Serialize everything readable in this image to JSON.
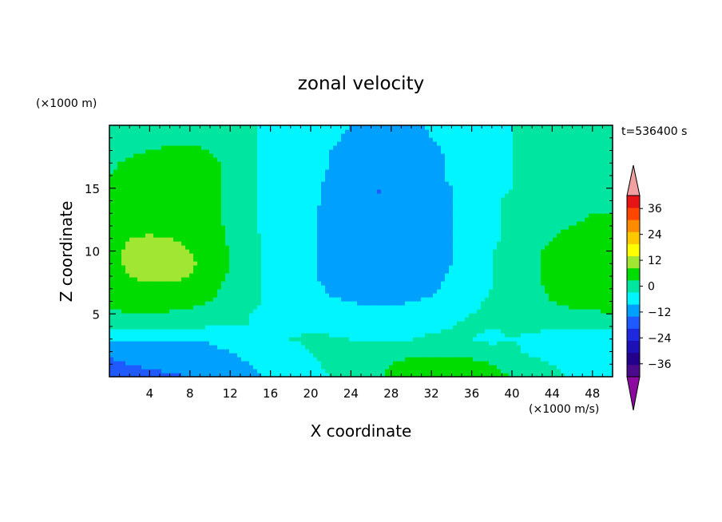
{
  "chart_data": {
    "type": "heatmap",
    "title": "zonal velocity",
    "xlabel": "X coordinate",
    "ylabel": "Z coordinate",
    "x_units": "(×1000 m/s)",
    "y_units": "(×1000 m)",
    "time_label": "t=536400 s",
    "xlim": [
      0,
      50
    ],
    "ylim": [
      0,
      20
    ],
    "xticks": [
      4,
      8,
      12,
      16,
      20,
      24,
      28,
      32,
      36,
      40,
      44,
      48
    ],
    "yticks": [
      5,
      10,
      15
    ],
    "colorbar": {
      "levels": [
        -42,
        -36,
        -30,
        -24,
        -18,
        -12,
        -6,
        0,
        6,
        12,
        18,
        24,
        30,
        36,
        42
      ],
      "colors": [
        "#4b0a8c",
        "#23008c",
        "#1d10b4",
        "#1e28dc",
        "#1e5aff",
        "#00a0ff",
        "#00f5ff",
        "#00e6a0",
        "#00dc00",
        "#a0e632",
        "#ffff00",
        "#ffc800",
        "#ff8c00",
        "#ff4600",
        "#e61414"
      ],
      "under_color": "#8c0aa0",
      "over_color": "#f0a0a0",
      "tick_labels": [
        "36",
        "24",
        "12",
        "0",
        "−12",
        "−24",
        "−36"
      ],
      "tick_values": [
        36,
        24,
        12,
        0,
        -12,
        -24,
        -36
      ]
    },
    "field": {
      "nx": 26,
      "nz": 21,
      "x_start": 0,
      "x_step": 2,
      "z_start": 0,
      "z_step": 1,
      "values": [
        [
          -17,
          -16,
          -14,
          -13,
          -12,
          -10,
          -8,
          -7,
          -5,
          -4,
          -2,
          0,
          2,
          4,
          7,
          8,
          10,
          10,
          10,
          8,
          6,
          4,
          2,
          -1,
          -2,
          -5
        ],
        [
          -13,
          -12,
          -11,
          -10,
          -10,
          -9,
          -7,
          -6,
          -5,
          -3,
          -1,
          1,
          3,
          5,
          6,
          7,
          8,
          8,
          8,
          6,
          4,
          2,
          0,
          -3,
          -4,
          -6
        ],
        [
          -11,
          -10,
          -9,
          -9,
          -9,
          -8,
          -6,
          -5,
          -4,
          -2,
          0,
          2,
          3,
          4,
          5,
          5,
          5,
          4,
          4,
          2,
          1,
          -1,
          -2,
          -4,
          -5,
          -6
        ],
        [
          -6,
          -6,
          -5,
          -5,
          -6,
          -5,
          -3,
          -2,
          -2,
          0,
          1,
          1,
          0,
          0,
          0,
          0,
          1,
          1,
          0,
          -1,
          0,
          -1,
          -3,
          -4,
          -4,
          -5
        ],
        [
          3,
          2,
          2,
          2,
          1,
          0,
          0,
          0,
          -1,
          -1,
          -1,
          -2,
          -3,
          -3,
          -3,
          -2,
          -1,
          0,
          1,
          0,
          1,
          1,
          1,
          1,
          2,
          2
        ],
        [
          5,
          6,
          6,
          5,
          4,
          3,
          1,
          0,
          -1,
          -1,
          -2,
          -3,
          -4,
          -4,
          -4,
          -3,
          -2,
          -1,
          0,
          1,
          2,
          3,
          4,
          5,
          5,
          6
        ],
        [
          7,
          8,
          9,
          9,
          8,
          6,
          3,
          1,
          -1,
          -2,
          -3,
          -5,
          -6,
          -7,
          -7,
          -6,
          -5,
          -3,
          -1,
          1,
          2,
          4,
          6,
          7,
          8,
          8
        ],
        [
          9,
          10,
          11,
          11,
          10,
          8,
          4,
          1,
          -1,
          -2,
          -4,
          -7,
          -9,
          -9,
          -10,
          -9,
          -7,
          -4,
          -2,
          0,
          2,
          4,
          7,
          8,
          9,
          9
        ],
        [
          10,
          12,
          13,
          13,
          12,
          9,
          5,
          1,
          -1,
          -3,
          -5,
          -8,
          -10,
          -11,
          -11,
          -10,
          -8,
          -5,
          -2,
          0,
          2,
          5,
          8,
          10,
          10,
          10
        ],
        [
          10,
          13,
          14,
          14,
          13,
          10,
          6,
          1,
          -1,
          -3,
          -5,
          -8,
          -11,
          -11,
          -11,
          -11,
          -9,
          -6,
          -3,
          0,
          2,
          5,
          8,
          11,
          11,
          10
        ],
        [
          10,
          13,
          14,
          14,
          12,
          10,
          6,
          1,
          -1,
          -3,
          -5,
          -8,
          -11,
          -12,
          -12,
          -11,
          -9,
          -6,
          -3,
          0,
          2,
          4,
          8,
          10,
          10,
          9
        ],
        [
          10,
          12,
          13,
          12,
          11,
          9,
          5,
          1,
          -1,
          -3,
          -5,
          -8,
          -11,
          -12,
          -12,
          -11,
          -9,
          -6,
          -3,
          -1,
          1,
          3,
          6,
          8,
          8,
          8
        ],
        [
          9,
          10,
          10,
          10,
          9,
          8,
          5,
          1,
          -2,
          -3,
          -5,
          -8,
          -10,
          -12,
          -12,
          -11,
          -9,
          -6,
          -3,
          -1,
          1,
          3,
          5,
          6,
          7,
          7
        ],
        [
          8,
          9,
          9,
          8,
          8,
          7,
          5,
          1,
          -2,
          -3,
          -5,
          -8,
          -10,
          -12,
          -12,
          -11,
          -9,
          -6,
          -3,
          -1,
          1,
          2,
          4,
          5,
          6,
          6
        ],
        [
          7,
          8,
          8,
          8,
          7,
          7,
          5,
          1,
          -2,
          -3,
          -5,
          -7,
          -10,
          -12,
          -12,
          -11,
          -9,
          -6,
          -3,
          -1,
          1,
          2,
          3,
          4,
          5,
          5
        ],
        [
          6,
          8,
          9,
          9,
          8,
          7,
          5,
          1,
          -2,
          -3,
          -5,
          -7,
          -10,
          -12,
          -12,
          -11,
          -9,
          -6,
          -3,
          -1,
          0,
          1,
          3,
          4,
          5,
          5
        ],
        [
          6,
          8,
          9,
          9,
          9,
          7,
          5,
          1,
          -2,
          -3,
          -4,
          -7,
          -10,
          -11,
          -12,
          -11,
          -8,
          -5,
          -3,
          -1,
          0,
          1,
          3,
          4,
          5,
          5
        ],
        [
          5,
          7,
          8,
          9,
          8,
          7,
          5,
          1,
          -2,
          -3,
          -4,
          -6,
          -9,
          -11,
          -11,
          -10,
          -8,
          -5,
          -3,
          -1,
          0,
          1,
          2,
          3,
          4,
          4
        ],
        [
          4,
          5,
          6,
          7,
          7,
          6,
          4,
          1,
          -2,
          -3,
          -4,
          -6,
          -8,
          -10,
          -11,
          -10,
          -7,
          -5,
          -3,
          -1,
          0,
          1,
          2,
          2,
          3,
          3
        ],
        [
          3,
          4,
          4,
          5,
          5,
          5,
          3,
          1,
          -2,
          -3,
          -4,
          -5,
          -7,
          -9,
          -10,
          -9,
          -6,
          -4,
          -2,
          -1,
          0,
          1,
          1,
          2,
          2,
          2
        ],
        [
          3,
          3,
          3,
          4,
          4,
          4,
          3,
          1,
          -2,
          -3,
          -3,
          -4,
          -6,
          -8,
          -9,
          -8,
          -5,
          -3,
          -2,
          -1,
          0,
          1,
          1,
          1,
          2,
          2
        ]
      ]
    }
  }
}
